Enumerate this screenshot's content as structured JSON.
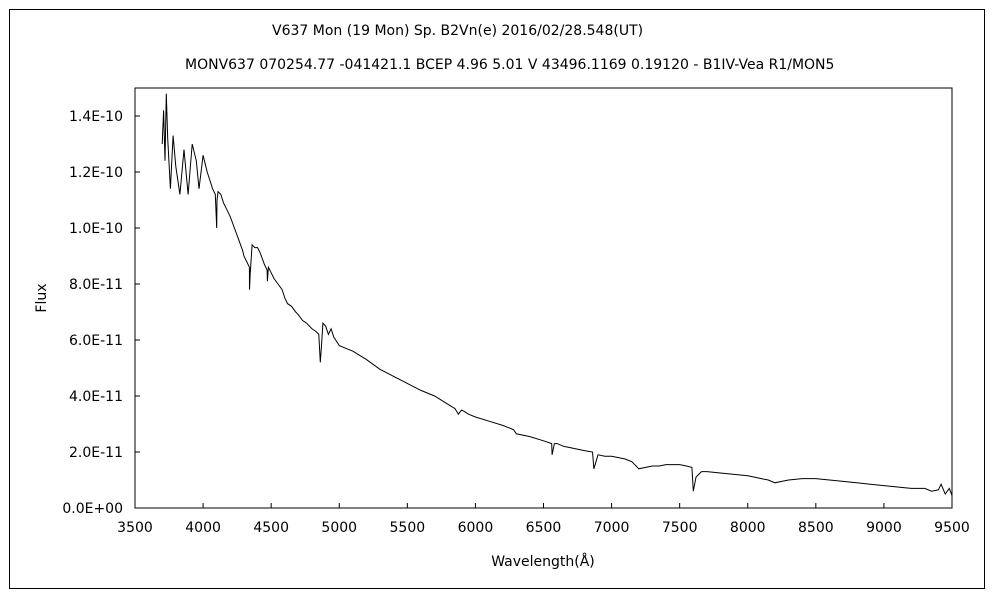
{
  "chart_data": {
    "type": "line",
    "title": "V637 Mon (19 Mon)    Sp. B2Vn(e)    2016/02/28.548(UT)",
    "subtitle": "MONV637 070254.77 -041421.1 BCEP 4.96 5.01 V 43496.1169 0.19120 - B1IV-Vea R1/MON5",
    "xlabel": "Wavelength(Å)",
    "ylabel": "Flux",
    "xlim": [
      3500,
      9500
    ],
    "ylim": [
      0,
      1.5e-10
    ],
    "x_ticks": [
      3500,
      4000,
      4500,
      5000,
      5500,
      6000,
      6500,
      7000,
      7500,
      8000,
      8500,
      9000,
      9500
    ],
    "x_tick_labels": [
      "3500",
      "4000",
      "4500",
      "5000",
      "5500",
      "6000",
      "6500",
      "7000",
      "7500",
      "8000",
      "8500",
      "9000",
      "9500"
    ],
    "y_ticks": [
      0,
      2e-11,
      4e-11,
      6e-11,
      8e-11,
      1e-10,
      1.2e-10,
      1.4e-10
    ],
    "y_tick_labels": [
      "0.0E+00",
      "2.0E-11",
      "4.0E-11",
      "6.0E-11",
      "8.0E-11",
      "1.0E-10",
      "1.2E-10",
      "1.4E-10"
    ],
    "grid": false,
    "legend": "none",
    "line_color": "#000000",
    "series": [
      {
        "x": [
          3700,
          3710,
          3720,
          3730,
          3740,
          3760,
          3780,
          3800,
          3830,
          3860,
          3890,
          3920,
          3950,
          3970,
          4000,
          4030,
          4050,
          4070,
          4090,
          4100,
          4102,
          4110,
          4130,
          4150,
          4180,
          4200,
          4230,
          4260,
          4290,
          4300,
          4320,
          4340,
          4341,
          4345,
          4360,
          4380,
          4400,
          4420,
          4450,
          4470,
          4472,
          4480,
          4500,
          4520,
          4550,
          4580,
          4600,
          4620,
          4650,
          4680,
          4700,
          4730,
          4760,
          4780,
          4800,
          4830,
          4850,
          4861,
          4870,
          4880,
          4900,
          4920,
          4940,
          4960,
          5000,
          5050,
          5100,
          5200,
          5300,
          5400,
          5500,
          5600,
          5700,
          5800,
          5850,
          5875,
          5890,
          5900,
          5950,
          6000,
          6100,
          6200,
          6280,
          6300,
          6400,
          6500,
          6560,
          6563,
          6580,
          6600,
          6650,
          6700,
          6800,
          6860,
          6870,
          6900,
          6950,
          7000,
          7100,
          7150,
          7200,
          7250,
          7300,
          7350,
          7400,
          7500,
          7550,
          7590,
          7600,
          7620,
          7640,
          7660,
          7700,
          7800,
          7900,
          8000,
          8100,
          8150,
          8200,
          8250,
          8300,
          8400,
          8500,
          8600,
          8700,
          8800,
          8900,
          9000,
          9100,
          9200,
          9300,
          9350,
          9400,
          9420,
          9450,
          9480,
          9500
        ],
        "y": [
          1.3e-10,
          1.42e-10,
          1.24e-10,
          1.48e-10,
          1.32e-10,
          1.14e-10,
          1.33e-10,
          1.22e-10,
          1.12e-10,
          1.28e-10,
          1.12e-10,
          1.3e-10,
          1.24e-10,
          1.14e-10,
          1.26e-10,
          1.2e-10,
          1.17e-10,
          1.14e-10,
          1.12e-10,
          1e-10,
          1.1e-10,
          1.13e-10,
          1.12e-10,
          1.09e-10,
          1.06e-10,
          1.04e-10,
          1e-10,
          9.6e-11,
          9.2e-11,
          9e-11,
          8.8e-11,
          8.6e-11,
          7.8e-11,
          8.3e-11,
          9.4e-11,
          9.3e-11,
          9.3e-11,
          9.1e-11,
          8.7e-11,
          8.5e-11,
          8.1e-11,
          8.6e-11,
          8.4e-11,
          8.2e-11,
          8e-11,
          7.8e-11,
          7.5e-11,
          7.3e-11,
          7.2e-11,
          7e-11,
          6.9e-11,
          6.7e-11,
          6.6e-11,
          6.5e-11,
          6.4e-11,
          6.3e-11,
          6.2e-11,
          5.2e-11,
          5.8e-11,
          6.6e-11,
          6.5e-11,
          6.2e-11,
          6.4e-11,
          6.1e-11,
          5.8e-11,
          5.7e-11,
          5.6e-11,
          5.3e-11,
          4.95e-11,
          4.7e-11,
          4.45e-11,
          4.2e-11,
          4e-11,
          3.7e-11,
          3.55e-11,
          3.35e-11,
          3.45e-11,
          3.5e-11,
          3.35e-11,
          3.25e-11,
          3.1e-11,
          2.95e-11,
          2.8e-11,
          2.65e-11,
          2.55e-11,
          2.4e-11,
          2.3e-11,
          1.9e-11,
          2.3e-11,
          2.3e-11,
          2.2e-11,
          2.15e-11,
          2.05e-11,
          2e-11,
          1.4e-11,
          1.9e-11,
          1.85e-11,
          1.85e-11,
          1.75e-11,
          1.65e-11,
          1.4e-11,
          1.45e-11,
          1.5e-11,
          1.5e-11,
          1.55e-11,
          1.55e-11,
          1.5e-11,
          1.45e-11,
          6e-12,
          1.1e-11,
          1.2e-11,
          1.3e-11,
          1.3e-11,
          1.25e-11,
          1.2e-11,
          1.15e-11,
          1.05e-11,
          1e-11,
          9e-12,
          9.5e-12,
          1e-11,
          1.05e-11,
          1.05e-11,
          1e-11,
          9.5e-12,
          9e-12,
          8.5e-12,
          8e-12,
          7.5e-12,
          7e-12,
          7e-12,
          6e-12,
          6.5e-12,
          8.5e-12,
          5e-12,
          7e-12,
          4.5e-12
        ]
      }
    ]
  }
}
